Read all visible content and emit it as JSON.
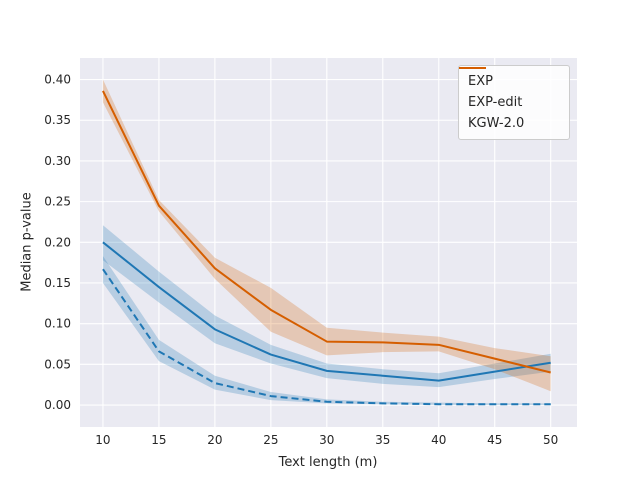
{
  "chart_data": {
    "type": "line",
    "title": "",
    "xlabel": "Text length (m)",
    "ylabel": "Median p-value",
    "grid": true,
    "legend_position": "upper right",
    "x": [
      10,
      15,
      20,
      25,
      30,
      35,
      40,
      45,
      50
    ],
    "xtick_labels": [
      "10",
      "15",
      "20",
      "25",
      "30",
      "35",
      "40",
      "45",
      "50"
    ],
    "ytick_values": [
      0.0,
      0.05,
      0.1,
      0.15,
      0.2,
      0.25,
      0.3,
      0.35,
      0.4
    ],
    "ytick_labels": [
      "0.00",
      "0.05",
      "0.10",
      "0.15",
      "0.20",
      "0.25",
      "0.30",
      "0.35",
      "0.40"
    ],
    "xlim": [
      7.95,
      52.35
    ],
    "ylim": [
      -0.027,
      0.4265
    ],
    "series": [
      {
        "name": "EXP",
        "color": "#1f77b4",
        "style": "solid",
        "values": [
          0.2,
          0.145,
          0.093,
          0.062,
          0.042,
          0.036,
          0.03,
          0.041,
          0.052
        ],
        "band_low": [
          0.178,
          0.126,
          0.076,
          0.051,
          0.033,
          0.026,
          0.022,
          0.032,
          0.041
        ],
        "band_high": [
          0.221,
          0.164,
          0.11,
          0.074,
          0.051,
          0.044,
          0.039,
          0.051,
          0.063
        ]
      },
      {
        "name": "EXP-edit",
        "color": "#1f77b4",
        "style": "dashed",
        "values": [
          0.167,
          0.066,
          0.027,
          0.011,
          0.004,
          0.002,
          0.001,
          0.001,
          0.001
        ],
        "band_low": [
          0.15,
          0.054,
          0.019,
          0.006,
          0.002,
          0.001,
          0.0,
          0.0,
          0.0
        ],
        "band_high": [
          0.183,
          0.08,
          0.036,
          0.016,
          0.007,
          0.004,
          0.003,
          0.002,
          0.002
        ]
      },
      {
        "name": "KGW-2.0",
        "color": "#d55e00",
        "style": "solid",
        "values": [
          0.386,
          0.245,
          0.168,
          0.117,
          0.078,
          0.077,
          0.074,
          0.057,
          0.04
        ],
        "band_low": [
          0.372,
          0.238,
          0.155,
          0.09,
          0.061,
          0.065,
          0.066,
          0.044,
          0.017
        ],
        "band_high": [
          0.4,
          0.252,
          0.181,
          0.144,
          0.095,
          0.089,
          0.084,
          0.07,
          0.06
        ]
      }
    ],
    "band_opacity": 0.25
  },
  "colors": {
    "figure_bg": "#ffffff",
    "plot_bg": "#eaeaf2",
    "gridline": "#ffffff",
    "text": "#262626",
    "legend_border": "#cccccc"
  }
}
